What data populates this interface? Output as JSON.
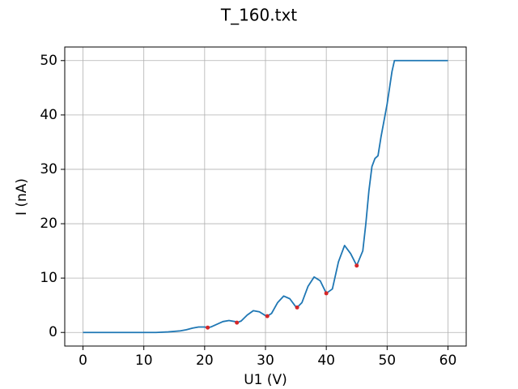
{
  "chart_data": {
    "type": "line",
    "title": "T_160.txt",
    "x_label": "U1 (V)",
    "y_label": "I (nA)",
    "xlim": [
      -3,
      63
    ],
    "ylim": [
      -2.5,
      52.5
    ],
    "xticks": [
      0,
      10,
      20,
      30,
      40,
      50,
      60
    ],
    "yticks": [
      0,
      10,
      20,
      30,
      40,
      50
    ],
    "grid": true,
    "series": [
      {
        "color": "#1f77b4",
        "marker": "none",
        "x": [
          0,
          4,
          8,
          12,
          14,
          16,
          17,
          18,
          19,
          20,
          20.5,
          21,
          22,
          23,
          24,
          25,
          25.3,
          26,
          27,
          28,
          29,
          30,
          30.3,
          31,
          32,
          33,
          34,
          35,
          35.2,
          36,
          37,
          38,
          39,
          40,
          41,
          42,
          43,
          44,
          45,
          46,
          46.5,
          47,
          47.5,
          48,
          48.5,
          49,
          50,
          50.8,
          51.2,
          52,
          56,
          60
        ],
        "values": [
          0,
          0,
          0,
          0,
          0.1,
          0.3,
          0.5,
          0.8,
          1.0,
          1.0,
          0.9,
          1.0,
          1.5,
          2.0,
          2.2,
          2.0,
          1.8,
          2.1,
          3.2,
          4.0,
          3.8,
          3.1,
          3.0,
          3.5,
          5.5,
          6.7,
          6.2,
          4.7,
          4.6,
          5.5,
          8.5,
          10.2,
          9.5,
          7.2,
          8.0,
          13.0,
          16.0,
          14.5,
          12.3,
          15.0,
          20.0,
          26.0,
          30.5,
          32.0,
          32.5,
          36.0,
          42.0,
          48.0,
          50,
          50,
          50,
          50
        ]
      },
      {
        "color": "#d62728",
        "marker": "dot",
        "x": [
          20.5,
          25.3,
          30.3,
          35.2,
          40,
          45
        ],
        "values": [
          0.9,
          1.8,
          3.0,
          4.6,
          7.2,
          12.3
        ]
      }
    ]
  }
}
